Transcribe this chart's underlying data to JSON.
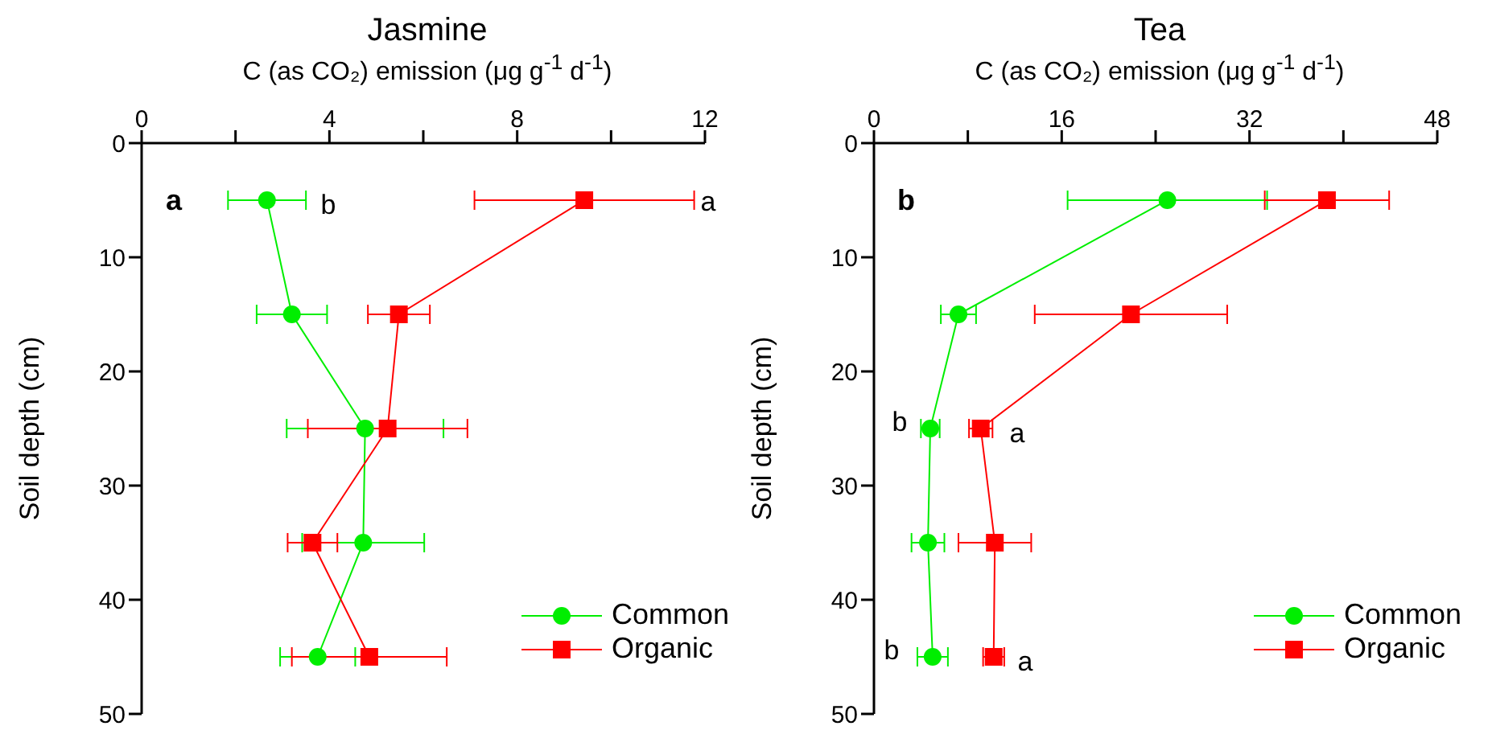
{
  "chart_data": [
    {
      "type": "line",
      "title": "Jasmine",
      "xlabel": "C (as CO₂) emission (μg g$^{-1}$ d$^{-1}$)",
      "ylabel": "Soil depth (cm)",
      "xlim": [
        0,
        12
      ],
      "xticks": [
        0,
        {
          "value": 2,
          "label": null
        },
        4,
        {
          "value": 6,
          "label": null
        },
        8,
        {
          "value": 10,
          "label": null
        },
        12
      ],
      "ylim": [
        50,
        0
      ],
      "yticks": [
        0,
        10,
        20,
        30,
        40,
        50
      ],
      "legend": "bottom right",
      "line_style": "solid",
      "series": [
        {
          "name": "Common",
          "color": "#00ee00",
          "marker": "circle",
          "x": [
            2.67,
            3.2,
            4.76,
            4.72,
            3.75
          ],
          "values": [
            5,
            15,
            25,
            35,
            45
          ],
          "xerrors": [
            0.83,
            0.75,
            1.67,
            1.3,
            0.8
          ]
        },
        {
          "name": "Organic",
          "color": "#ff0000",
          "marker": "square",
          "x": [
            9.43,
            5.48,
            5.24,
            3.64,
            4.85
          ],
          "values": [
            5,
            15,
            25,
            35,
            45
          ],
          "xerrors": [
            2.34,
            0.66,
            1.7,
            0.53,
            1.65
          ]
        }
      ],
      "annotations": [
        "a",
        "b",
        "a"
      ]
    },
    {
      "type": "line",
      "title": "Tea",
      "xlabel": "C (as CO₂) emission (μg g$^{-1}$ d$^{-1}$)",
      "ylabel": "Soil depth (cm)",
      "xlim": [
        0,
        48
      ],
      "xticks": [
        0,
        {
          "value": 8,
          "label": null
        },
        16,
        {
          "value": 24,
          "label": null
        },
        32,
        {
          "value": 40,
          "label": null
        },
        48
      ],
      "ylim": [
        50,
        0
      ],
      "yticks": [
        0,
        10,
        20,
        30,
        40,
        50
      ],
      "legend": "bottom right",
      "line_style": "solid",
      "series": [
        {
          "name": "Common",
          "color": "#00ee00",
          "marker": "circle",
          "x": [
            25,
            7.2,
            4.8,
            4.6,
            5.0
          ],
          "values": [
            5,
            15,
            25,
            35,
            45
          ],
          "xerrors": [
            8.5,
            1.5,
            0.8,
            1.4,
            1.3
          ]
        },
        {
          "name": "Organic",
          "color": "#ff0000",
          "marker": "square",
          "x": [
            38.6,
            21.9,
            9.1,
            10.3,
            10.2
          ],
          "values": [
            5,
            15,
            25,
            35,
            45
          ],
          "xerrors": [
            5.3,
            8.2,
            1,
            3.1,
            0.9
          ]
        }
      ],
      "annotations": [
        "b",
        "b",
        "a",
        "b",
        "a"
      ]
    }
  ]
}
